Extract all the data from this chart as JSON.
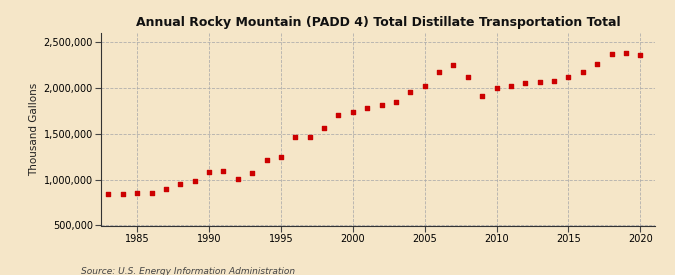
{
  "title": "Annual Rocky Mountain (PADD 4) Total Distillate Transportation Total",
  "ylabel": "Thousand Gallons",
  "source": "Source: U.S. Energy Information Administration",
  "background_color": "#f5e6c8",
  "plot_background_color": "#f5e6c8",
  "marker_color": "#cc0000",
  "grid_color": "#aaaaaa",
  "years": [
    1983,
    1984,
    1985,
    1986,
    1987,
    1988,
    1989,
    1990,
    1991,
    1992,
    1993,
    1994,
    1995,
    1996,
    1997,
    1998,
    1999,
    2000,
    2001,
    2002,
    2003,
    2004,
    2005,
    2006,
    2007,
    2008,
    2009,
    2010,
    2011,
    2012,
    2013,
    2014,
    2015,
    2016,
    2017,
    2018,
    2019,
    2020
  ],
  "values": [
    840000,
    840000,
    855000,
    855000,
    900000,
    950000,
    990000,
    1080000,
    1100000,
    1010000,
    1070000,
    1210000,
    1250000,
    1460000,
    1470000,
    1560000,
    1700000,
    1740000,
    1780000,
    1810000,
    1850000,
    1960000,
    2020000,
    2170000,
    2250000,
    2120000,
    1910000,
    2000000,
    2020000,
    2050000,
    2060000,
    2080000,
    2120000,
    2170000,
    2260000,
    2370000,
    2380000,
    2360000
  ],
  "ylim": [
    500000,
    2600000
  ],
  "yticks": [
    500000,
    1000000,
    1500000,
    2000000,
    2500000
  ],
  "xticks": [
    1985,
    1990,
    1995,
    2000,
    2005,
    2010,
    2015,
    2020
  ],
  "xlim": [
    1982.5,
    2021
  ]
}
